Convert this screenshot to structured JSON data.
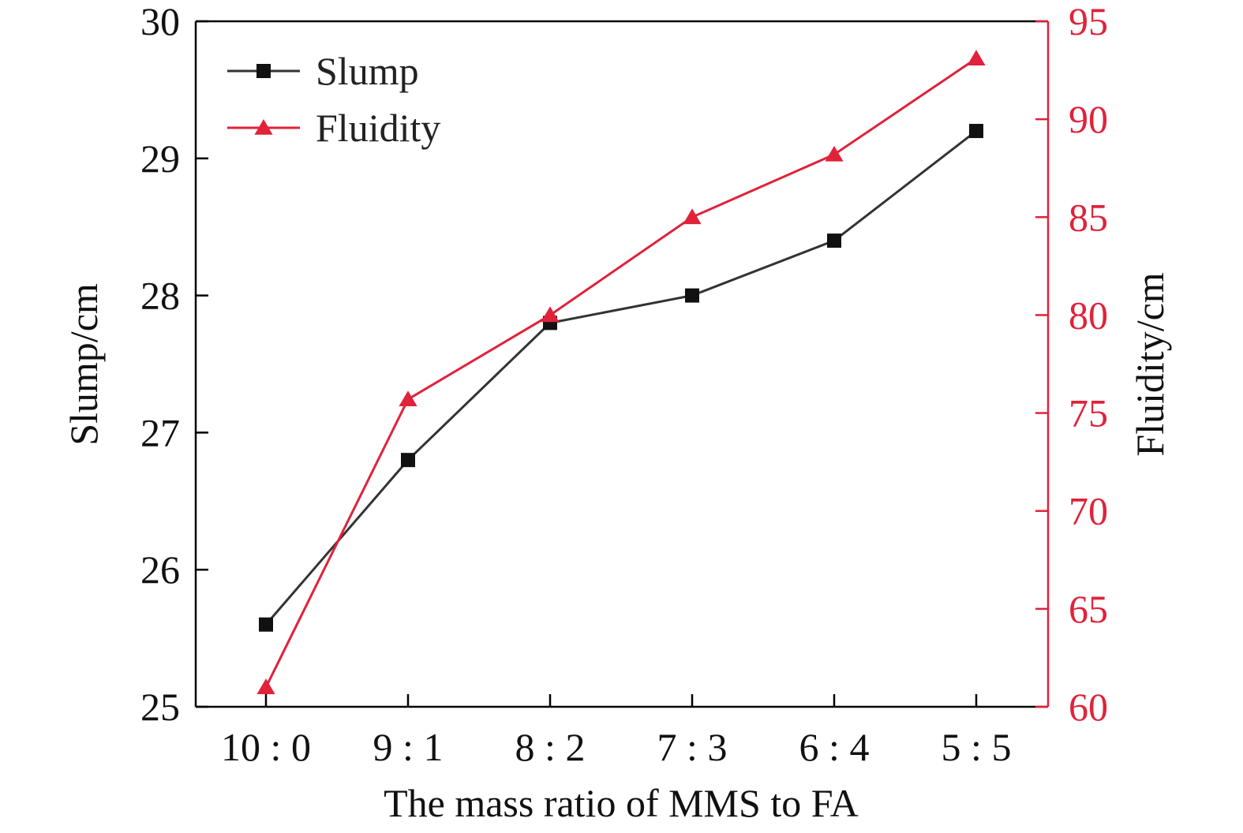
{
  "chart_data": {
    "type": "line",
    "categories": [
      "10 : 0",
      "9 : 1",
      "8 : 2",
      "7 : 3",
      "6 : 4",
      "5 : 5"
    ],
    "xlabel": "The mass ratio of MMS to FA",
    "ylabel": "Slump/cm",
    "y2label": "Fluidity/cm",
    "ylim": [
      25,
      30
    ],
    "y2lim": [
      60,
      95
    ],
    "yticks": [
      25,
      26,
      27,
      28,
      29,
      30
    ],
    "y2ticks": [
      60,
      65,
      70,
      75,
      80,
      85,
      90,
      95
    ],
    "legend_position": "top-left",
    "grid": false,
    "series": [
      {
        "name": "Slump",
        "axis": "left",
        "marker": "square",
        "color": "#333333",
        "marker_color": "#111111",
        "values": [
          25.6,
          26.8,
          27.8,
          28.0,
          28.4,
          29.2
        ]
      },
      {
        "name": "Fluidity",
        "axis": "right",
        "marker": "triangle",
        "color": "#e0223a",
        "marker_color": "#e0223a",
        "values": [
          61.0,
          75.7,
          80.0,
          85.0,
          88.2,
          93.1
        ]
      }
    ],
    "colors": {
      "axis": "#000000",
      "right_axis": "#e0223a"
    }
  }
}
